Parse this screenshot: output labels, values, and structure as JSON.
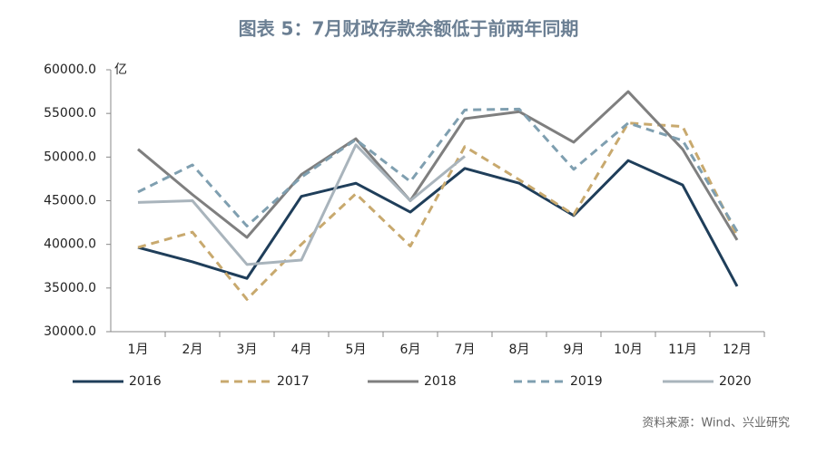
{
  "chart_data": {
    "type": "line",
    "title": "图表 5：7月财政存款余额低于前两年同期",
    "y_unit": "亿",
    "source": "资料来源：Wind、兴业研究",
    "categories": [
      "1月",
      "2月",
      "3月",
      "4月",
      "5月",
      "6月",
      "7月",
      "8月",
      "9月",
      "10月",
      "11月",
      "12月"
    ],
    "series": [
      {
        "name": "2016",
        "color": "#1f3e5a",
        "dash": false,
        "values": [
          39650,
          38000,
          36100,
          45500,
          47000,
          43700,
          48700,
          47000,
          43300,
          49600,
          46800,
          35200
        ]
      },
      {
        "name": "2017",
        "color": "#c8a96e",
        "dash": true,
        "values": [
          39650,
          41400,
          33700,
          40000,
          45800,
          39800,
          51200,
          47400,
          43400,
          53900,
          53500,
          41000
        ]
      },
      {
        "name": "2018",
        "color": "#7f7f7f",
        "dash": false,
        "values": [
          50900,
          45700,
          40800,
          48000,
          52100,
          45000,
          54400,
          55200,
          51700,
          57500,
          50900,
          40500
        ]
      },
      {
        "name": "2019",
        "color": "#7f9fb0",
        "dash": true,
        "values": [
          46000,
          49100,
          42100,
          47700,
          52000,
          47200,
          55400,
          55500,
          48600,
          53900,
          51900,
          41500
        ]
      },
      {
        "name": "2020",
        "color": "#a9b4bc",
        "dash": false,
        "values": [
          44800,
          45000,
          37700,
          38200,
          51400,
          45000,
          50100,
          null,
          null,
          null,
          null,
          null
        ]
      }
    ],
    "ylim": [
      30000,
      60000
    ],
    "yticks": [
      {
        "value": 30000,
        "label": "30000.0"
      },
      {
        "value": 35000,
        "label": "35000.0"
      },
      {
        "value": 40000,
        "label": "40000.0"
      },
      {
        "value": 45000,
        "label": "45000.0"
      },
      {
        "value": 50000,
        "label": "50000.0"
      },
      {
        "value": 55000,
        "label": "55000.0"
      },
      {
        "value": 60000,
        "label": "60000.0"
      }
    ],
    "legend": "bottom"
  }
}
